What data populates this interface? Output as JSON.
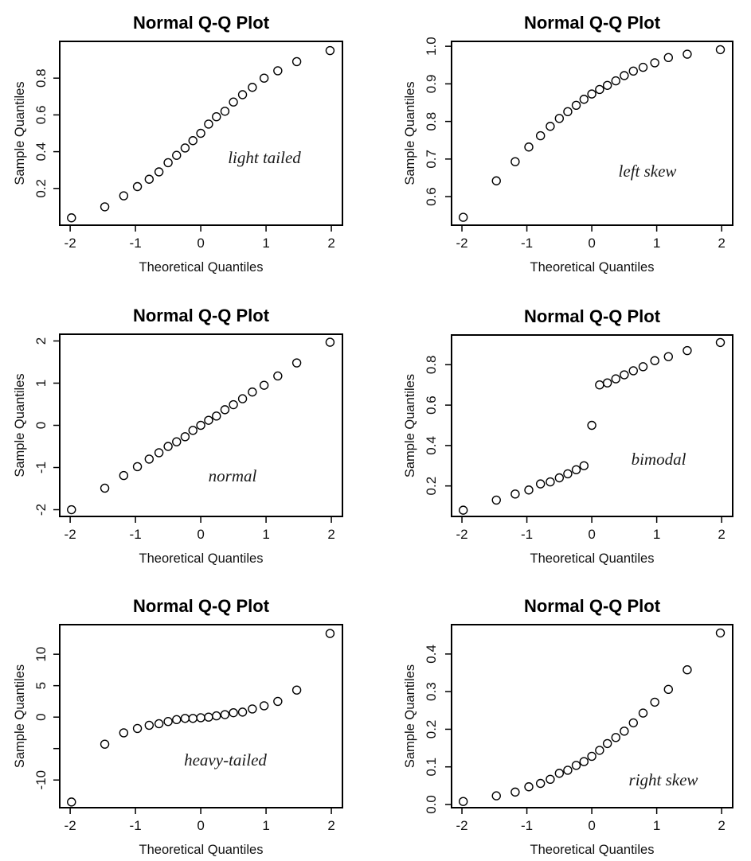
{
  "chart_data": [
    {
      "type": "scatter",
      "title": "Normal Q-Q Plot",
      "xlabel": "Theoretical Quantiles",
      "ylabel": "Sample Quantiles",
      "annotation": "light tailed",
      "xlim": [
        -2.16,
        2.17
      ],
      "ylim": [
        0.0,
        1.0
      ],
      "xticks": [
        -2,
        -1,
        0,
        1,
        2
      ],
      "xtick_labels": [
        "-2",
        "-1",
        "0",
        "1",
        "2"
      ],
      "yticks": [
        0.2,
        0.4,
        0.6,
        0.8
      ],
      "ytick_labels": [
        "0.2",
        "0.4",
        "0.6",
        "0.8"
      ],
      "x": [
        -1.98,
        -1.47,
        -1.18,
        -0.97,
        -0.79,
        -0.64,
        -0.5,
        -0.37,
        -0.24,
        -0.12,
        0,
        0.12,
        0.24,
        0.37,
        0.5,
        0.64,
        0.79,
        0.97,
        1.18,
        1.47,
        1.98
      ],
      "y": [
        0.04,
        0.1,
        0.16,
        0.21,
        0.25,
        0.29,
        0.34,
        0.38,
        0.42,
        0.46,
        0.5,
        0.55,
        0.59,
        0.62,
        0.67,
        0.71,
        0.75,
        0.8,
        0.84,
        0.89,
        0.95
      ]
    },
    {
      "type": "scatter",
      "title": "Normal Q-Q Plot",
      "xlabel": "Theoretical Quantiles",
      "ylabel": "Sample Quantiles",
      "annotation": "left skew",
      "xlim": [
        -2.16,
        2.17
      ],
      "ylim": [
        0.524,
        1.013
      ],
      "xticks": [
        -2,
        -1,
        0,
        1,
        2
      ],
      "xtick_labels": [
        "-2",
        "-1",
        "0",
        "1",
        "2"
      ],
      "yticks": [
        0.6,
        0.7,
        0.8,
        0.9,
        1.0
      ],
      "ytick_labels": [
        "0.6",
        "0.7",
        "0.8",
        "0.9",
        "1.0"
      ],
      "x": [
        -1.98,
        -1.47,
        -1.18,
        -0.97,
        -0.79,
        -0.64,
        -0.5,
        -0.37,
        -0.24,
        -0.12,
        0,
        0.12,
        0.24,
        0.37,
        0.5,
        0.64,
        0.79,
        0.97,
        1.18,
        1.47,
        1.98
      ],
      "y": [
        0.545,
        0.642,
        0.693,
        0.732,
        0.762,
        0.787,
        0.808,
        0.826,
        0.843,
        0.859,
        0.873,
        0.885,
        0.896,
        0.908,
        0.922,
        0.934,
        0.944,
        0.956,
        0.97,
        0.979,
        0.991
      ]
    },
    {
      "type": "scatter",
      "title": "Normal Q-Q Plot",
      "xlabel": "Theoretical Quantiles",
      "ylabel": "Sample Quantiles",
      "annotation": "normal",
      "xlim": [
        -2.16,
        2.17
      ],
      "ylim": [
        -2.16,
        2.16
      ],
      "xticks": [
        -2,
        -1,
        0,
        1,
        2
      ],
      "xtick_labels": [
        "-2",
        "-1",
        "0",
        "1",
        "2"
      ],
      "yticks": [
        -2,
        -1,
        0,
        1,
        2
      ],
      "ytick_labels": [
        "-2",
        "-1",
        "0",
        "1",
        "2"
      ],
      "x": [
        -1.98,
        -1.47,
        -1.18,
        -0.97,
        -0.79,
        -0.64,
        -0.5,
        -0.37,
        -0.24,
        -0.12,
        0,
        0.12,
        0.24,
        0.37,
        0.5,
        0.64,
        0.79,
        0.97,
        1.18,
        1.47,
        1.98
      ],
      "y": [
        -2.0,
        -1.49,
        -1.19,
        -0.98,
        -0.8,
        -0.65,
        -0.5,
        -0.39,
        -0.27,
        -0.12,
        0.0,
        0.12,
        0.22,
        0.37,
        0.49,
        0.63,
        0.79,
        0.95,
        1.17,
        1.48,
        1.97
      ]
    },
    {
      "type": "scatter",
      "title": "Normal Q-Q Plot",
      "xlabel": "Theoretical Quantiles",
      "ylabel": "Sample Quantiles",
      "annotation": "bimodal",
      "xlim": [
        -2.16,
        2.17
      ],
      "ylim": [
        0.049,
        0.947
      ],
      "xticks": [
        -2,
        -1,
        0,
        1,
        2
      ],
      "xtick_labels": [
        "-2",
        "-1",
        "0",
        "1",
        "2"
      ],
      "yticks": [
        0.2,
        0.4,
        0.6,
        0.8
      ],
      "ytick_labels": [
        "0.2",
        "0.4",
        "0.6",
        "0.8"
      ],
      "x": [
        -1.98,
        -1.47,
        -1.18,
        -0.97,
        -0.79,
        -0.64,
        -0.5,
        -0.37,
        -0.24,
        -0.12,
        0,
        0.12,
        0.24,
        0.37,
        0.5,
        0.64,
        0.79,
        0.97,
        1.18,
        1.47,
        1.98
      ],
      "y": [
        0.08,
        0.13,
        0.16,
        0.18,
        0.21,
        0.22,
        0.24,
        0.26,
        0.28,
        0.3,
        0.5,
        0.7,
        0.71,
        0.73,
        0.75,
        0.77,
        0.79,
        0.82,
        0.84,
        0.87,
        0.91
      ]
    },
    {
      "type": "scatter",
      "title": "Normal Q-Q Plot",
      "xlabel": "Theoretical Quantiles",
      "ylabel": "Sample Quantiles",
      "annotation": "heavy-tailed",
      "xlim": [
        -2.16,
        2.17
      ],
      "ylim": [
        -14.4,
        14.7
      ],
      "xticks": [
        -2,
        -1,
        0,
        1,
        2
      ],
      "xtick_labels": [
        "-2",
        "-1",
        "0",
        "1",
        "2"
      ],
      "yticks": [
        -10,
        -5,
        0,
        5,
        10
      ],
      "ytick_labels": [
        "-10",
        "",
        "0",
        "5",
        "10"
      ],
      "x": [
        -1.98,
        -1.47,
        -1.18,
        -0.97,
        -0.79,
        -0.64,
        -0.5,
        -0.37,
        -0.24,
        -0.12,
        0,
        0.12,
        0.24,
        0.37,
        0.5,
        0.64,
        0.79,
        0.97,
        1.18,
        1.47,
        1.98
      ],
      "y": [
        -13.5,
        -4.3,
        -2.5,
        -1.8,
        -1.3,
        -1.05,
        -0.7,
        -0.4,
        -0.2,
        -0.2,
        -0.1,
        0.0,
        0.2,
        0.4,
        0.7,
        0.8,
        1.3,
        1.8,
        2.5,
        4.3,
        13.3
      ]
    },
    {
      "type": "scatter",
      "title": "Normal Q-Q Plot",
      "xlabel": "Theoretical Quantiles",
      "ylabel": "Sample Quantiles",
      "annotation": "right skew",
      "xlim": [
        -2.16,
        2.17
      ],
      "ylim": [
        -0.0085,
        0.478
      ],
      "xticks": [
        -2,
        -1,
        0,
        1,
        2
      ],
      "xtick_labels": [
        "-2",
        "-1",
        "0",
        "1",
        "2"
      ],
      "yticks": [
        0.0,
        0.1,
        0.2,
        0.3,
        0.4
      ],
      "ytick_labels": [
        "0.0",
        "0.1",
        "0.2",
        "0.3",
        "0.4"
      ],
      "x": [
        -1.98,
        -1.47,
        -1.18,
        -0.97,
        -0.79,
        -0.64,
        -0.5,
        -0.37,
        -0.24,
        -0.12,
        0,
        0.12,
        0.24,
        0.37,
        0.5,
        0.64,
        0.79,
        0.97,
        1.18,
        1.47,
        1.98
      ],
      "y": [
        0.008,
        0.023,
        0.033,
        0.047,
        0.056,
        0.067,
        0.083,
        0.091,
        0.104,
        0.114,
        0.128,
        0.144,
        0.162,
        0.178,
        0.195,
        0.217,
        0.243,
        0.272,
        0.306,
        0.358,
        0.456
      ]
    }
  ]
}
